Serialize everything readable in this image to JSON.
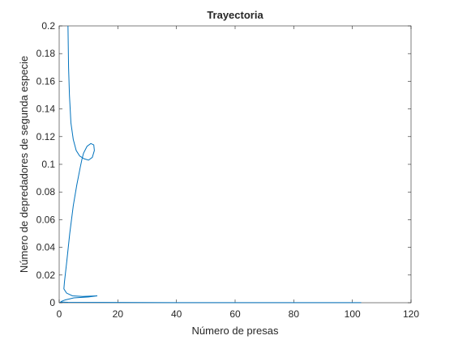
{
  "chart_data": {
    "type": "line",
    "title": "Trayectoria",
    "xlabel": "Número de presas",
    "ylabel": "Número de depredadores de segunda especie",
    "color": "#0072bd",
    "x": [
      3.0,
      3.2,
      3.5,
      4.0,
      4.8,
      5.8,
      7.0,
      8.5,
      10.0,
      11.3,
      12.0,
      11.8,
      10.8,
      9.5,
      8.3,
      7.8,
      7.2,
      6.0,
      4.8,
      3.6,
      2.6,
      1.8,
      1.6,
      2.5,
      4.5,
      8.0,
      13.0,
      10.0,
      5.0,
      2.0,
      0.8,
      0.5,
      3,
      15,
      40,
      70,
      103
    ],
    "values": [
      0.2,
      0.17,
      0.15,
      0.13,
      0.118,
      0.11,
      0.106,
      0.104,
      0.103,
      0.105,
      0.11,
      0.114,
      0.115,
      0.113,
      0.108,
      0.104,
      0.098,
      0.085,
      0.07,
      0.05,
      0.03,
      0.015,
      0.01,
      0.007,
      0.005,
      0.0045,
      0.005,
      0.0042,
      0.0035,
      0.002,
      0.001,
      0.0005,
      0.0003,
      0.0002,
      0.0001,
      0.0001,
      0.0001
    ],
    "xlim": [
      0,
      120
    ],
    "xticks": [
      0,
      20,
      40,
      60,
      80,
      100,
      120
    ],
    "ylim": [
      0,
      0.2
    ],
    "yticks": [
      0,
      0.02,
      0.04,
      0.06,
      0.08,
      0.1,
      0.12,
      0.14,
      0.16,
      0.18,
      0.2
    ]
  }
}
